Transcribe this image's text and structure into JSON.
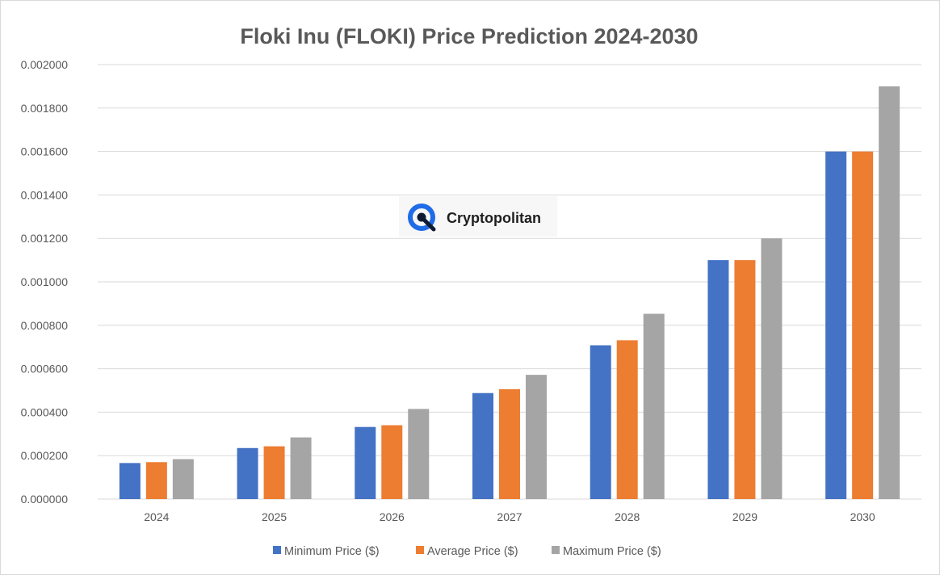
{
  "colors": {
    "min": "#4472c4",
    "avg": "#ed7d31",
    "max": "#a5a5a5",
    "grid": "#d9d9d9",
    "text": "#595959",
    "logo_blue": "#1f6be8",
    "logo_dark": "#0f1b33"
  },
  "watermark": {
    "name": "Cryptopolitan",
    "icon": "cryptopolitan-logo-icon"
  },
  "chart_data": {
    "type": "bar",
    "title": "Floki Inu (FLOKI) Price Prediction 2024-2030",
    "xlabel": "",
    "ylabel": "",
    "ylim": [
      0,
      0.002
    ],
    "yticks": [
      "0.000000",
      "0.000200",
      "0.000400",
      "0.000600",
      "0.000800",
      "0.001000",
      "0.001200",
      "0.001400",
      "0.001600",
      "0.001800",
      "0.002000"
    ],
    "grid": true,
    "legend_position": "bottom",
    "categories": [
      "2024",
      "2025",
      "2026",
      "2027",
      "2028",
      "2029",
      "2030"
    ],
    "series": [
      {
        "name": "Minimum Price ($)",
        "color": "#4472c4",
        "values": [
          0.000166,
          0.000235,
          0.000332,
          0.000488,
          0.000708,
          0.0011,
          0.0016
        ]
      },
      {
        "name": "Average Price ($)",
        "color": "#ed7d31",
        "values": [
          0.00017,
          0.000243,
          0.00034,
          0.000506,
          0.000731,
          0.0011,
          0.0016
        ]
      },
      {
        "name": "Maximum Price ($)",
        "color": "#a5a5a5",
        "values": [
          0.000184,
          0.000284,
          0.000415,
          0.000572,
          0.000853,
          0.0012,
          0.0019
        ]
      }
    ]
  }
}
